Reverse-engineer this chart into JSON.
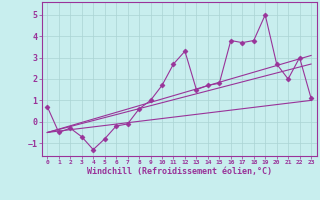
{
  "xlabel": "Windchill (Refroidissement éolien,°C)",
  "background_color": "#c8eeee",
  "grid_color": "#aad4d4",
  "line_color": "#993399",
  "xlim": [
    -0.5,
    23.5
  ],
  "ylim": [
    -1.6,
    5.6
  ],
  "yticks": [
    -1,
    0,
    1,
    2,
    3,
    4,
    5
  ],
  "xticks": [
    0,
    1,
    2,
    3,
    4,
    5,
    6,
    7,
    8,
    9,
    10,
    11,
    12,
    13,
    14,
    15,
    16,
    17,
    18,
    19,
    20,
    21,
    22,
    23
  ],
  "data_x": [
    0,
    1,
    2,
    3,
    4,
    5,
    6,
    7,
    8,
    9,
    10,
    11,
    12,
    13,
    14,
    15,
    16,
    17,
    18,
    19,
    20,
    21,
    22,
    23
  ],
  "data_y": [
    0.7,
    -0.5,
    -0.3,
    -0.7,
    -1.3,
    -0.8,
    -0.2,
    -0.1,
    0.6,
    1.0,
    1.7,
    2.7,
    3.3,
    1.5,
    1.7,
    1.8,
    3.8,
    3.7,
    3.8,
    5.0,
    2.7,
    2.0,
    3.0,
    1.1
  ],
  "line1_x": [
    0,
    23
  ],
  "line1_y": [
    -0.5,
    1.0
  ],
  "line2_x": [
    0,
    23
  ],
  "line2_y": [
    -0.5,
    2.7
  ],
  "line3_x": [
    0,
    23
  ],
  "line3_y": [
    -0.5,
    3.1
  ]
}
